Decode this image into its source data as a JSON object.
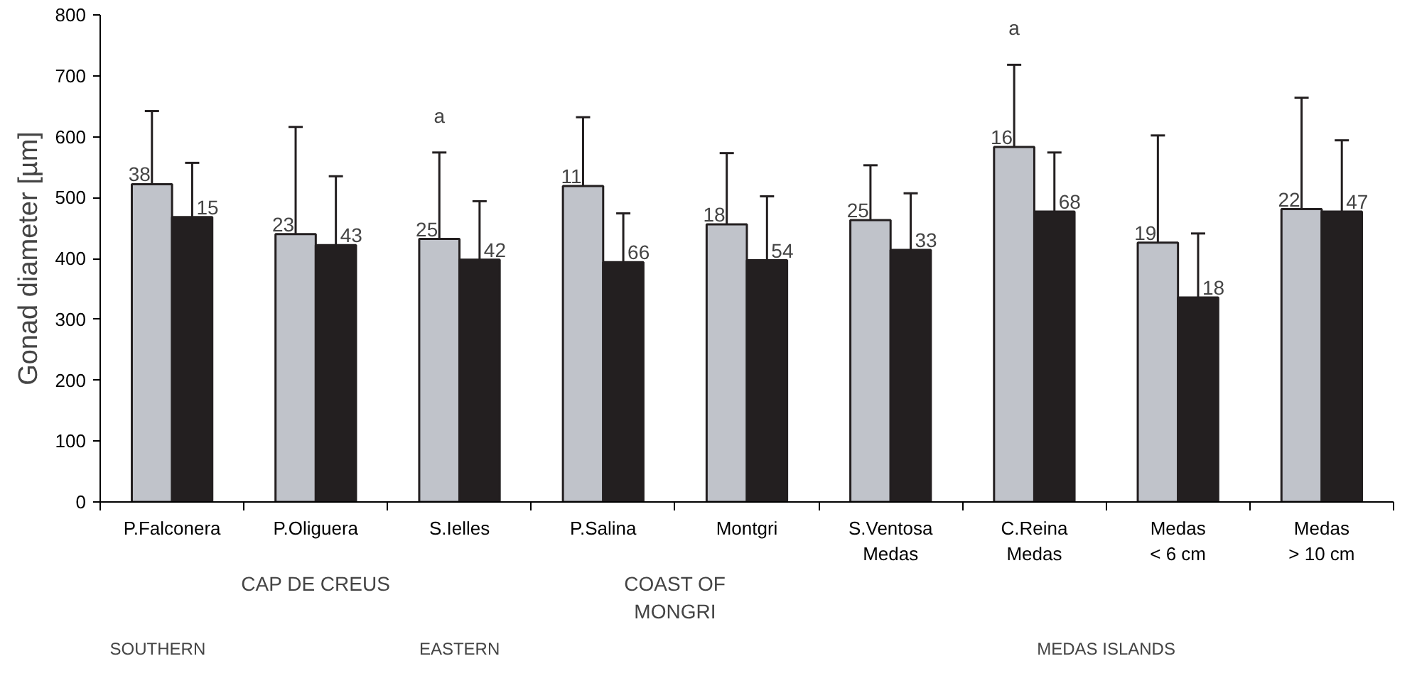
{
  "chart_data": {
    "type": "bar",
    "ylabel": "Gonad diameter [µm]",
    "categories": [
      "P.Falconera",
      "P.Oliguera",
      "S.Ielles",
      "P.Salina",
      "Montgri",
      "S.Ventosa\nMedas",
      "C.Reina\nMedas",
      "Medas\n< 6 cm",
      "Medas\n> 10 cm"
    ],
    "series": [
      {
        "color": "#c0c3ca",
        "values": [
          522,
          440,
          432,
          519,
          456,
          463,
          583,
          426,
          481
        ],
        "errors": [
          120,
          176,
          142,
          113,
          117,
          90,
          135,
          176,
          183
        ]
      },
      {
        "color": "#231f20",
        "values": [
          468,
          422,
          398,
          394,
          397,
          414,
          477,
          336,
          477
        ],
        "errors": [
          89,
          113,
          96,
          80,
          105,
          93,
          97,
          105,
          117
        ]
      }
    ],
    "ylim": [
      0,
      800
    ],
    "yticks": [
      0,
      100,
      200,
      300,
      400,
      500,
      600,
      700,
      800
    ],
    "grid": false,
    "annotations": [
      "38",
      "23",
      "25",
      "11",
      "18",
      "25",
      "16",
      "19",
      "22",
      "15",
      "43",
      "42",
      "66",
      "54",
      "33",
      "68",
      "18",
      "47",
      "a",
      "a",
      "CAP DE CREUS",
      "COAST OF MONGRI",
      "SOUTHERN",
      "EASTERN",
      "MEDAS ISLANDS"
    ]
  }
}
